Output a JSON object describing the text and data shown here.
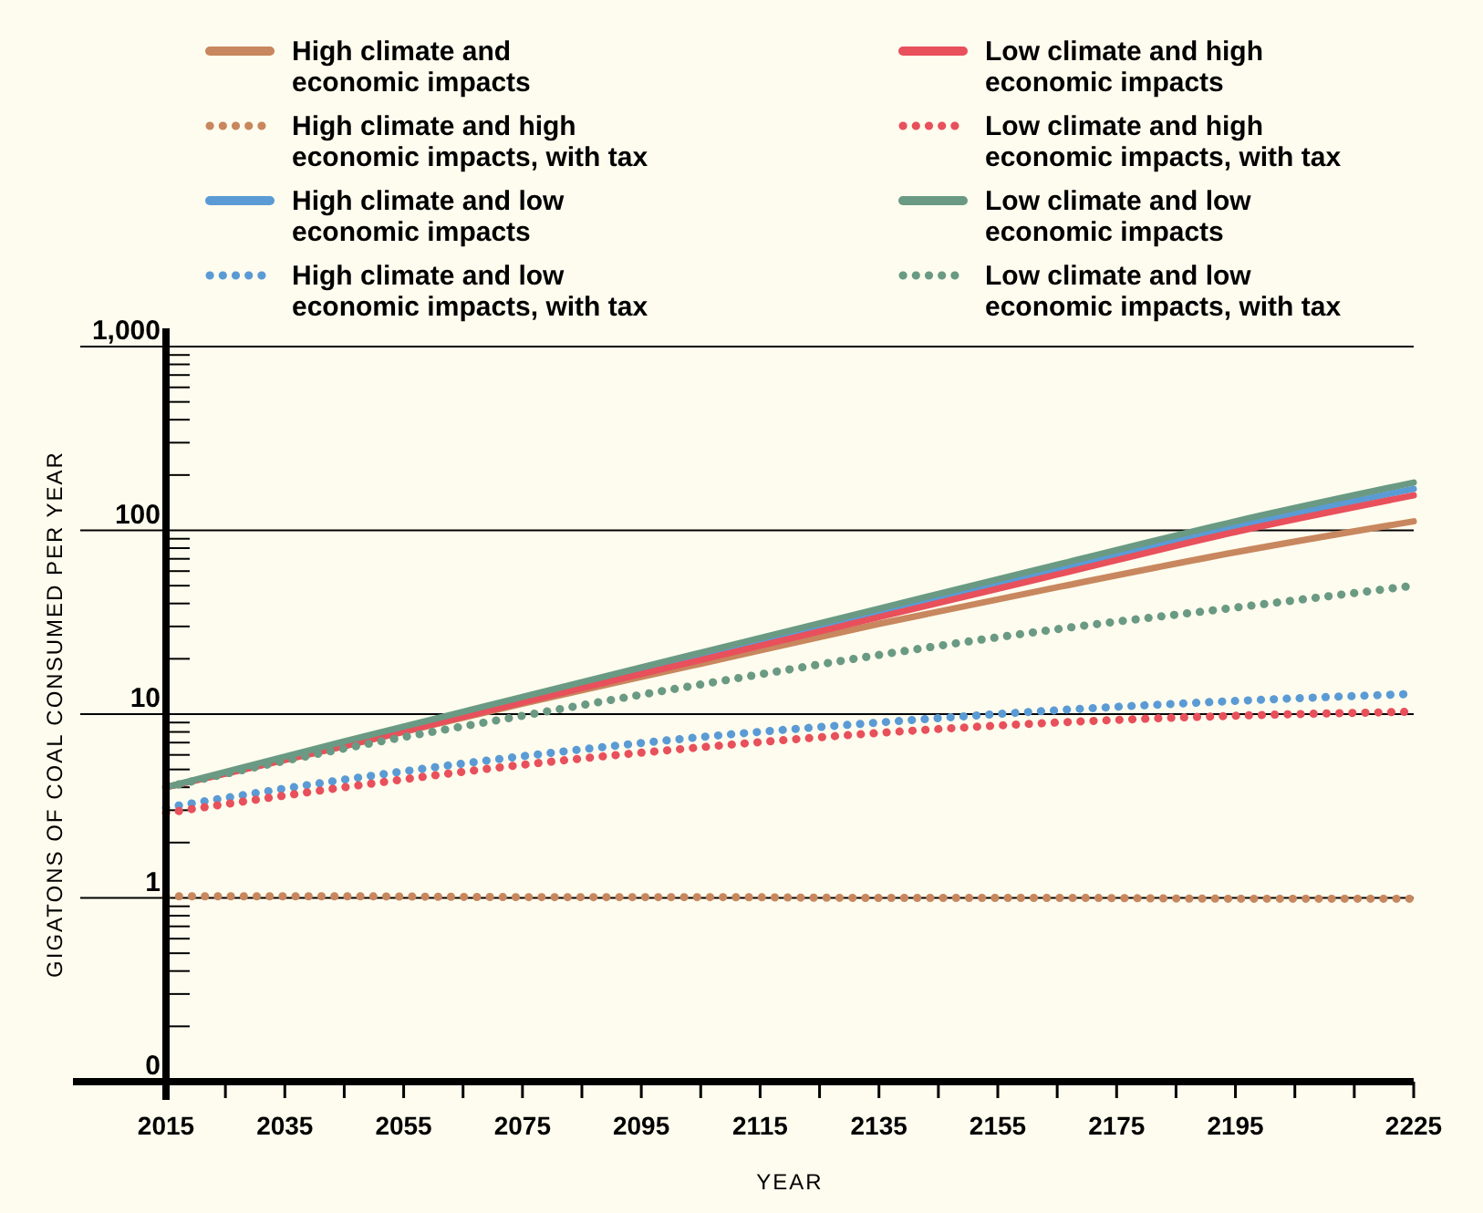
{
  "chart_data": {
    "type": "line",
    "xlabel": "YEAR",
    "ylabel": "GIGATONS OF COAL CONSUMED PER YEAR",
    "log": true,
    "grid": "y",
    "legend": "top",
    "xlim": [
      2015,
      2225
    ],
    "ylim": [
      0.1,
      1000
    ],
    "xticks": [
      2015,
      {
        "value": 2025,
        "label": null
      },
      2035,
      {
        "value": 2045,
        "label": null
      },
      2055,
      {
        "value": 2065,
        "label": null
      },
      2075,
      {
        "value": 2085,
        "label": null
      },
      2095,
      {
        "value": 2105,
        "label": null
      },
      2115,
      {
        "value": 2125,
        "label": null
      },
      2135,
      {
        "value": 2145,
        "label": null
      },
      2155,
      {
        "value": 2165,
        "label": null
      },
      2175,
      {
        "value": 2185,
        "label": null
      },
      2195,
      {
        "value": 2205,
        "label": null
      },
      {
        "value": 2215,
        "label": null
      },
      2225
    ],
    "yticks": [
      {
        "value": 0.1,
        "label": "0"
      },
      {
        "value": 0.2,
        "label": null
      },
      {
        "value": 0.3,
        "label": null
      },
      {
        "value": 0.4,
        "label": null
      },
      {
        "value": 0.5,
        "label": null
      },
      {
        "value": 0.6,
        "label": null
      },
      {
        "value": 0.7,
        "label": null
      },
      {
        "value": 0.8,
        "label": null
      },
      {
        "value": 0.9,
        "label": null
      },
      1,
      {
        "value": 2,
        "label": null
      },
      {
        "value": 3,
        "label": null
      },
      {
        "value": 4,
        "label": null
      },
      {
        "value": 5,
        "label": null
      },
      {
        "value": 6,
        "label": null
      },
      {
        "value": 7,
        "label": null
      },
      {
        "value": 8,
        "label": null
      },
      {
        "value": 9,
        "label": null
      },
      10,
      {
        "value": 20,
        "label": null
      },
      {
        "value": 30,
        "label": null
      },
      {
        "value": 40,
        "label": null
      },
      {
        "value": 50,
        "label": null
      },
      {
        "value": 60,
        "label": null
      },
      {
        "value": 70,
        "label": null
      },
      {
        "value": 80,
        "label": null
      },
      {
        "value": 90,
        "label": null
      },
      100,
      {
        "value": 200,
        "label": null
      },
      {
        "value": 300,
        "label": null
      },
      {
        "value": 400,
        "label": null
      },
      {
        "value": 500,
        "label": null
      },
      {
        "value": 600,
        "label": null
      },
      {
        "value": 700,
        "label": null
      },
      {
        "value": 800,
        "label": null
      },
      {
        "value": 900,
        "label": null
      },
      {
        "value": 1000,
        "label": "1,000"
      }
    ],
    "x": [
      2015,
      2045,
      2075,
      2105,
      2135,
      2165,
      2195,
      2225
    ],
    "series": [
      {
        "name": "High climate and economic impacts",
        "color": "#c8875e",
        "line_style": "solid",
        "values": [
          4,
          6.7,
          11.4,
          18.8,
          31,
          49,
          76,
          112
        ]
      },
      {
        "name": "High climate and high economic impacts, with tax",
        "color": "#c8875e",
        "line_style": "dotted",
        "values": [
          1.02,
          1.02,
          1.01,
          1.01,
          1.0,
          1.0,
          0.99,
          0.99
        ]
      },
      {
        "name": "High climate and low economic impacts",
        "color": "#5b9bd5",
        "line_style": "solid",
        "values": [
          null,
          null,
          12.0,
          20.6,
          35.5,
          61,
          105,
          168
        ]
      },
      {
        "name": "High climate and low economic impacts, with tax",
        "color": "#5b9bd5",
        "line_style": "dotted",
        "values": [
          3.1,
          4.4,
          5.9,
          7.5,
          9.0,
          10.5,
          11.8,
          12.9
        ]
      },
      {
        "name": "Low climate and high economic impacts",
        "color": "#e8505b",
        "line_style": "solid",
        "values": [
          4,
          6.7,
          11.6,
          19.7,
          33.7,
          57.5,
          98,
          155
        ]
      },
      {
        "name": "Low climate and high economic impacts, with tax",
        "color": "#e8505b",
        "line_style": "dotted",
        "values": [
          2.9,
          4.0,
          5.3,
          6.6,
          7.9,
          9.0,
          9.8,
          10.3
        ]
      },
      {
        "name": "Low climate and low economic impacts",
        "color": "#6a9a84",
        "line_style": "solid",
        "values": [
          4,
          7.1,
          12.4,
          21.6,
          37.5,
          65,
          112,
          182
        ]
      },
      {
        "name": "Low climate and low economic impacts, with tax",
        "color": "#6a9a84",
        "line_style": "dotted",
        "values": [
          4,
          6.5,
          9.8,
          14.5,
          21,
          29,
          38,
          50
        ]
      }
    ]
  }
}
